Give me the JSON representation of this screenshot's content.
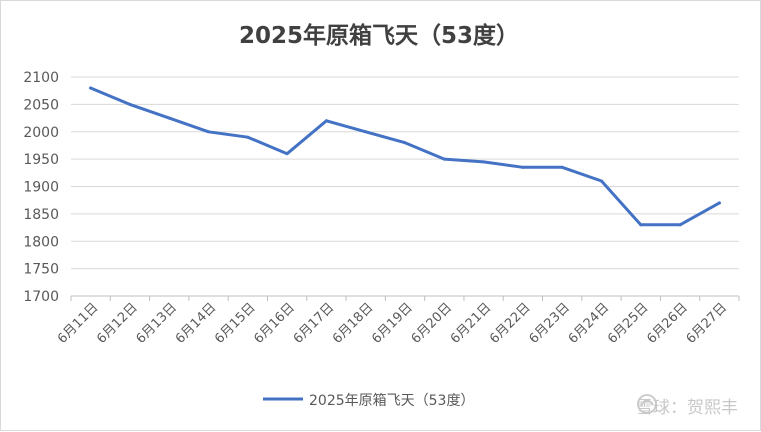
{
  "chart_data": {
    "type": "line",
    "title": "2025年原箱飞天（53度）",
    "xlabel": "",
    "ylabel": "",
    "categories": [
      "6月11日",
      "6月12日",
      "6月13日",
      "6月14日",
      "6月15日",
      "6月16日",
      "6月17日",
      "6月18日",
      "6月19日",
      "6月20日",
      "6月21日",
      "6月22日",
      "6月23日",
      "6月24日",
      "6月25日",
      "6月26日",
      "6月27日"
    ],
    "series": [
      {
        "name": "2025年原箱飞天（53度）",
        "values": [
          2080,
          2050,
          2025,
          2000,
          1990,
          1960,
          2020,
          2000,
          1980,
          1950,
          1945,
          1935,
          1935,
          1910,
          1830,
          1830,
          1870
        ]
      }
    ],
    "ylim": [
      1700,
      2100
    ],
    "yticks": [
      1700,
      1750,
      1800,
      1850,
      1900,
      1950,
      2000,
      2050,
      2100
    ],
    "grid": true,
    "legend": "bottom",
    "colors": {
      "series": "#4472c4",
      "grid": "#d9d9d9",
      "axis": "#bfbfbf",
      "text": "#595959",
      "title": "#404040"
    }
  },
  "watermark": {
    "text": "雪球：贺熙丰",
    "icon": "snowball-logo-icon"
  }
}
